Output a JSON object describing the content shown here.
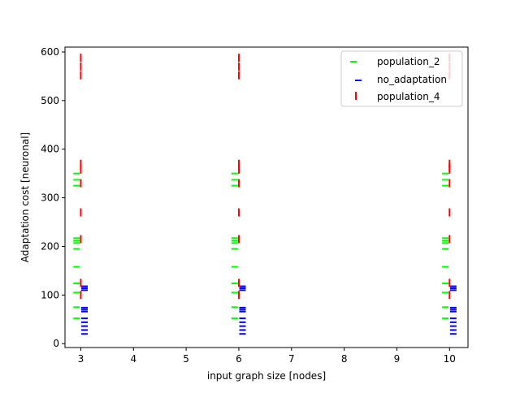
{
  "chart_data": {
    "type": "scatter",
    "title": "",
    "xlabel": "input graph size [nodes]",
    "ylabel": "Adaptation cost [neuronal]",
    "xlim": [
      2.7,
      10.35
    ],
    "ylim": [
      -8,
      610
    ],
    "xticks": [
      3,
      4,
      5,
      6,
      7,
      8,
      9,
      10
    ],
    "yticks": [
      0,
      100,
      200,
      300,
      400,
      500,
      600
    ],
    "grid": false,
    "legend_position": "top-right",
    "series": [
      {
        "name": "population_2",
        "marker": "hline",
        "color": "#00ff00",
        "offset": -0.08,
        "points": [
          {
            "x": 3,
            "y": [
              52,
              75,
              105,
              124,
              158,
              195,
              207,
              212,
              217,
              325,
              337,
              350
            ]
          },
          {
            "x": 6,
            "y": [
              52,
              75,
              105,
              124,
              158,
              195,
              207,
              212,
              217,
              325,
              337,
              350
            ]
          },
          {
            "x": 10,
            "y": [
              52,
              75,
              105,
              124,
              158,
              195,
              207,
              212,
              217,
              325,
              337,
              350
            ]
          }
        ]
      },
      {
        "name": "no_adaptation",
        "marker": "hline",
        "color": "#0000ff",
        "offset": 0.07,
        "points": [
          {
            "x": 3,
            "y": [
              20,
              28,
              36,
              44,
              52,
              66,
              70,
              74,
              110,
              114,
              118
            ]
          },
          {
            "x": 6,
            "y": [
              20,
              28,
              36,
              44,
              52,
              66,
              70,
              74,
              110,
              114,
              118
            ]
          },
          {
            "x": 10,
            "y": [
              20,
              28,
              36,
              44,
              52,
              66,
              70,
              74,
              110,
              114,
              118
            ]
          }
        ]
      },
      {
        "name": "population_4",
        "marker": "vline",
        "color": "#ff0000",
        "offset": 0.0,
        "points": [
          {
            "x": 3,
            "y": [
              100,
              125,
              215,
              270,
              330,
              358,
              363,
              370,
              552,
              570,
              588
            ]
          },
          {
            "x": 6,
            "y": [
              100,
              125,
              215,
              270,
              330,
              358,
              363,
              370,
              552,
              570,
              588
            ]
          },
          {
            "x": 10,
            "y": [
              100,
              125,
              215,
              270,
              330,
              358,
              363,
              370,
              552,
              570,
              588
            ]
          }
        ]
      }
    ]
  }
}
